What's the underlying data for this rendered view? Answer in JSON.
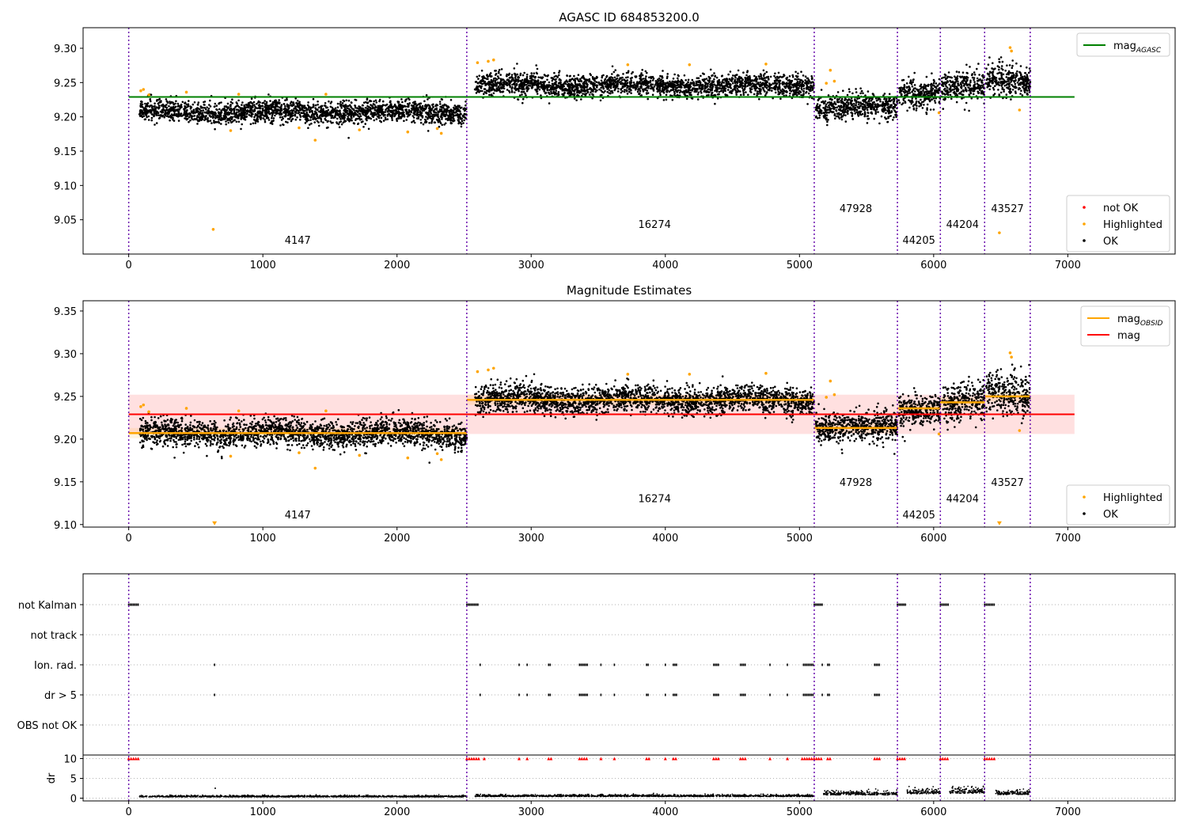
{
  "chart_data": [
    {
      "type": "scatter",
      "title": "AGASC ID 684853200.0",
      "xlim": [
        -340,
        7800
      ],
      "ylim": [
        9.0,
        9.33
      ],
      "xticks": [
        0,
        1000,
        2000,
        3000,
        4000,
        5000,
        6000,
        7000
      ],
      "xtick_labels": [
        "0",
        "1000",
        "2000",
        "3000",
        "4000",
        "5000",
        "6000",
        "7000"
      ],
      "yticks": [
        9.05,
        9.1,
        9.15,
        9.2,
        9.25,
        9.3
      ],
      "ytick_labels": [
        "9.05",
        "9.10",
        "9.15",
        "9.20",
        "9.25",
        "9.30"
      ],
      "obs_boundaries": [
        0,
        2520,
        5110,
        5730,
        6050,
        6380,
        6720
      ],
      "obsids": [
        {
          "label": "4147",
          "x": 1260,
          "y": 9.015
        },
        {
          "label": "16274",
          "x": 3920,
          "y": 9.038
        },
        {
          "label": "47928",
          "x": 5420,
          "y": 9.061
        },
        {
          "label": "44205",
          "x": 5890,
          "y": 9.015
        },
        {
          "label": "44204",
          "x": 6215,
          "y": 9.038
        },
        {
          "label": "43527",
          "x": 6550,
          "y": 9.061
        }
      ],
      "segments": [
        {
          "x0": 80,
          "x1": 2520,
          "mean": 9.207,
          "spread": 0.008
        },
        {
          "x0": 2580,
          "x1": 5110,
          "mean": 9.246,
          "spread": 0.008
        },
        {
          "x0": 5120,
          "x1": 5730,
          "mean": 9.213,
          "spread": 0.009
        },
        {
          "x0": 5740,
          "x1": 6050,
          "mean": 9.236,
          "spread": 0.01
        },
        {
          "x0": 6060,
          "x1": 6380,
          "mean": 9.242,
          "spread": 0.011
        },
        {
          "x0": 6390,
          "x1": 6720,
          "mean": 9.252,
          "spread": 0.012
        }
      ],
      "highlighted": [
        {
          "x": 90,
          "y": 9.238
        },
        {
          "x": 110,
          "y": 9.24
        },
        {
          "x": 150,
          "y": 9.232
        },
        {
          "x": 430,
          "y": 9.236
        },
        {
          "x": 630,
          "y": 9.036
        },
        {
          "x": 760,
          "y": 9.18
        },
        {
          "x": 820,
          "y": 9.233
        },
        {
          "x": 1270,
          "y": 9.184
        },
        {
          "x": 1390,
          "y": 9.166
        },
        {
          "x": 1470,
          "y": 9.233
        },
        {
          "x": 1720,
          "y": 9.181
        },
        {
          "x": 2080,
          "y": 9.178
        },
        {
          "x": 2300,
          "y": 9.183
        },
        {
          "x": 2330,
          "y": 9.176
        },
        {
          "x": 2600,
          "y": 9.279
        },
        {
          "x": 2680,
          "y": 9.281
        },
        {
          "x": 2720,
          "y": 9.283
        },
        {
          "x": 3720,
          "y": 9.276
        },
        {
          "x": 4180,
          "y": 9.276
        },
        {
          "x": 4750,
          "y": 9.277
        },
        {
          "x": 5200,
          "y": 9.249
        },
        {
          "x": 5230,
          "y": 9.268
        },
        {
          "x": 5260,
          "y": 9.252
        },
        {
          "x": 6040,
          "y": 9.206
        },
        {
          "x": 6490,
          "y": 9.031
        },
        {
          "x": 6570,
          "y": 9.301
        },
        {
          "x": 6580,
          "y": 9.296
        },
        {
          "x": 6640,
          "y": 9.21
        }
      ],
      "reference_line": {
        "name": "mag_AGASC",
        "y": 9.229,
        "x0": 0,
        "x1": 7050,
        "color": "#008000"
      },
      "legend": [
        {
          "name": "mag",
          "sub": "AGASC",
          "kind": "line",
          "color": "#008000"
        }
      ],
      "legend2": [
        {
          "name": "not OK",
          "kind": "dot",
          "color": "#ff0000"
        },
        {
          "name": "Highlighted",
          "kind": "dot",
          "color": "#ffa500"
        },
        {
          "name": "OK",
          "kind": "dot",
          "color": "#000000"
        }
      ]
    },
    {
      "type": "scatter",
      "title": "Magnitude Estimates",
      "xlim": [
        -340,
        7800
      ],
      "ylim": [
        9.097,
        9.362
      ],
      "xticks": [
        0,
        1000,
        2000,
        3000,
        4000,
        5000,
        6000,
        7000
      ],
      "xtick_labels": [
        "0",
        "1000",
        "2000",
        "3000",
        "4000",
        "5000",
        "6000",
        "7000"
      ],
      "yticks": [
        9.1,
        9.15,
        9.2,
        9.25,
        9.3,
        9.35
      ],
      "ytick_labels": [
        "9.10",
        "9.15",
        "9.20",
        "9.25",
        "9.30",
        "9.35"
      ],
      "obs_boundaries": [
        0,
        2520,
        5110,
        5730,
        6050,
        6380,
        6720
      ],
      "obsids": [
        {
          "label": "4147",
          "x": 1260,
          "y": 9.107
        },
        {
          "label": "16274",
          "x": 3920,
          "y": 9.126
        },
        {
          "label": "47928",
          "x": 5420,
          "y": 9.145
        },
        {
          "label": "44205",
          "x": 5890,
          "y": 9.107
        },
        {
          "label": "44204",
          "x": 6215,
          "y": 9.126
        },
        {
          "label": "43527",
          "x": 6550,
          "y": 9.145
        }
      ],
      "mag": {
        "name": "mag",
        "y": 9.229,
        "band": [
          9.206,
          9.252
        ],
        "x0": 0,
        "x1": 7050,
        "color": "#ff0000"
      },
      "mag_obsid": [
        {
          "x0": 0,
          "x1": 2520,
          "y": 9.207
        },
        {
          "x0": 2520,
          "x1": 5110,
          "y": 9.246
        },
        {
          "x0": 5110,
          "x1": 5730,
          "y": 9.213
        },
        {
          "x0": 5730,
          "x1": 6050,
          "y": 9.236
        },
        {
          "x0": 6050,
          "x1": 6380,
          "y": 9.243
        },
        {
          "x0": 6380,
          "x1": 6720,
          "y": 9.25
        }
      ],
      "clipped_markers": [
        {
          "x": 640,
          "y": 9.1
        },
        {
          "x": 6490,
          "y": 9.1
        }
      ],
      "legend": [
        {
          "name": "mag",
          "sub": "OBSID",
          "kind": "line",
          "color": "#ffa500"
        },
        {
          "name": "mag",
          "sub": "",
          "kind": "line",
          "color": "#ff0000"
        }
      ],
      "legend2": [
        {
          "name": "Highlighted",
          "kind": "dot",
          "color": "#ffa500"
        },
        {
          "name": "OK",
          "kind": "dot",
          "color": "#000000"
        }
      ]
    },
    {
      "type": "scatter",
      "title": "",
      "xlim": [
        -340,
        7800
      ],
      "flag_rows": [
        "not Kalman",
        "not track",
        "Ion. rad.",
        "dr > 5",
        "OBS not OK"
      ],
      "flags": {
        "not Kalman": [
          [
            0,
            80
          ],
          [
            2520,
            2610
          ],
          [
            5110,
            5180
          ],
          [
            5730,
            5800
          ],
          [
            6050,
            6120
          ],
          [
            6380,
            6460
          ]
        ],
        "not track": [],
        "Ion. rad.": [
          [
            640,
            650
          ],
          [
            2620,
            2630
          ],
          [
            2910,
            2920
          ],
          [
            2970,
            2980
          ],
          [
            3130,
            3150
          ],
          [
            3360,
            3420
          ],
          [
            3520,
            3530
          ],
          [
            3620,
            3630
          ],
          [
            3860,
            3880
          ],
          [
            4000,
            4010
          ],
          [
            4060,
            4090
          ],
          [
            4360,
            4400
          ],
          [
            4560,
            4600
          ],
          [
            4780,
            4790
          ],
          [
            4910,
            4920
          ],
          [
            5030,
            5110
          ],
          [
            5170,
            5180
          ],
          [
            5210,
            5230
          ],
          [
            5560,
            5600
          ]
        ],
        "dr > 5": [
          [
            640,
            650
          ],
          [
            2620,
            2630
          ],
          [
            2910,
            2920
          ],
          [
            2970,
            2980
          ],
          [
            3130,
            3150
          ],
          [
            3360,
            3420
          ],
          [
            3520,
            3530
          ],
          [
            3620,
            3630
          ],
          [
            3860,
            3880
          ],
          [
            4000,
            4010
          ],
          [
            4060,
            4090
          ],
          [
            4360,
            4400
          ],
          [
            4560,
            4600
          ],
          [
            4780,
            4790
          ],
          [
            4910,
            4920
          ],
          [
            5030,
            5110
          ],
          [
            5170,
            5180
          ],
          [
            5210,
            5230
          ],
          [
            5560,
            5600
          ]
        ],
        "OBS not OK": []
      },
      "dr_ylabel": "dr",
      "dr_yticks": [
        0,
        5,
        10
      ],
      "dr_ytick_labels": [
        "0",
        "5",
        "10"
      ],
      "dr_ylim": [
        -0.3,
        10.3
      ],
      "dr_clipped": [
        [
          0,
          80
        ],
        [
          2520,
          2620
        ],
        [
          2650,
          2660
        ],
        [
          2910,
          2920
        ],
        [
          2970,
          2980
        ],
        [
          3130,
          3150
        ],
        [
          3360,
          3420
        ],
        [
          3520,
          3530
        ],
        [
          3620,
          3630
        ],
        [
          3860,
          3880
        ],
        [
          4000,
          4010
        ],
        [
          4060,
          4090
        ],
        [
          4360,
          4400
        ],
        [
          4560,
          4600
        ],
        [
          4780,
          4790
        ],
        [
          4910,
          4920
        ],
        [
          5020,
          5170
        ],
        [
          5210,
          5230
        ],
        [
          5560,
          5600
        ],
        [
          5730,
          5800
        ],
        [
          6050,
          6120
        ],
        [
          6380,
          6460
        ]
      ],
      "dr_segments": [
        {
          "x0": 80,
          "x1": 2520,
          "mean": 0.3
        },
        {
          "x0": 2580,
          "x1": 5110,
          "mean": 0.4
        },
        {
          "x0": 5180,
          "x1": 5730,
          "mean": 0.8
        },
        {
          "x0": 5800,
          "x1": 6050,
          "mean": 1.1
        },
        {
          "x0": 6120,
          "x1": 6380,
          "mean": 1.2
        },
        {
          "x0": 6460,
          "x1": 6720,
          "mean": 0.9
        }
      ],
      "xticks": [
        0,
        1000,
        2000,
        3000,
        4000,
        5000,
        6000,
        7000
      ],
      "xtick_labels": [
        "0",
        "1000",
        "2000",
        "3000",
        "4000",
        "5000",
        "6000",
        "7000"
      ]
    }
  ]
}
